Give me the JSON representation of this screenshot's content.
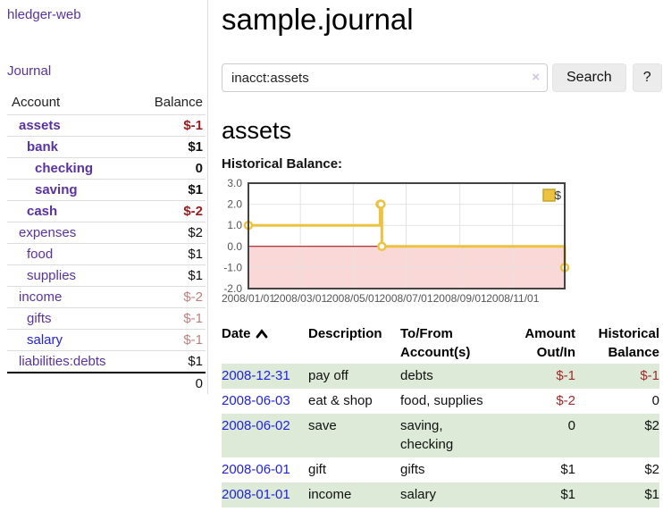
{
  "app": {
    "brand": "hledger-web",
    "nav_journal": "Journal"
  },
  "sidebar": {
    "header": {
      "account": "Account",
      "balance": "Balance"
    },
    "accounts": [
      {
        "name": "assets",
        "indent": 0,
        "balance": "$-1",
        "emphasized": true
      },
      {
        "name": "bank",
        "indent": 1,
        "balance": "$1",
        "emphasized": true
      },
      {
        "name": "checking",
        "indent": 2,
        "balance": "0",
        "emphasized": true
      },
      {
        "name": "saving",
        "indent": 2,
        "balance": "$1",
        "emphasized": true
      },
      {
        "name": "cash",
        "indent": 1,
        "balance": "$-2",
        "emphasized": true
      },
      {
        "name": "expenses",
        "indent": 0,
        "balance": "$2"
      },
      {
        "name": "food",
        "indent": 1,
        "balance": "$1"
      },
      {
        "name": "supplies",
        "indent": 1,
        "balance": "$1"
      },
      {
        "name": "income",
        "indent": 0,
        "balance": "$-2"
      },
      {
        "name": "gifts",
        "indent": 1,
        "balance": "$-1"
      },
      {
        "name": "salary",
        "indent": 1,
        "balance": "$-1",
        "unvisited": true
      },
      {
        "name": "liabilities:debts",
        "indent": 0,
        "balance": "$1"
      }
    ],
    "total": "0"
  },
  "header": {
    "title": "sample.journal"
  },
  "search": {
    "value": "inacct:assets",
    "clear_icon": "×",
    "button_label": "Search",
    "help_label": "?"
  },
  "account_page": {
    "heading": "assets",
    "chart_label": "Historical Balance:"
  },
  "chart_data": {
    "type": "line",
    "style": "steps-with-points",
    "title": "Historical Balance",
    "x_domain": [
      "2008-01-01",
      "2008-12-31"
    ],
    "ylim": [
      -2,
      3
    ],
    "y_ticks": [
      "3.0",
      "2.0",
      "1.0",
      "0.0",
      "-1.0",
      "-2.0"
    ],
    "x_ticks": [
      "2008/01/01",
      "2008/03/01",
      "2008/05/01",
      "2008/07/01",
      "2008/09/01",
      "2008/11/01"
    ],
    "series": [
      {
        "name": "$",
        "color": "#edc240",
        "points": [
          [
            "2008-01-01",
            1
          ],
          [
            "2008-06-01",
            2
          ],
          [
            "2008-06-02",
            2
          ],
          [
            "2008-06-03",
            0
          ],
          [
            "2008-12-31",
            -1
          ]
        ]
      }
    ],
    "legend": {
      "label": "$",
      "position": "top-right"
    },
    "grid": true,
    "negative_region_fill": "#fad8d8",
    "zero_line_color": "#990000"
  },
  "register": {
    "columns": [
      {
        "line1": "Date",
        "sort_icon": true,
        "align": "left"
      },
      {
        "line1": "Description",
        "align": "left"
      },
      {
        "line1": "To/From",
        "line2": "Account(s)",
        "align": "left"
      },
      {
        "line1": "Amount",
        "line2": "Out/In",
        "align": "right"
      },
      {
        "line1": "Historical",
        "line2": "Balance",
        "align": "right"
      }
    ],
    "rows": [
      {
        "date": "2008-12-31",
        "description": "pay off",
        "accounts": "debts",
        "amount": "$-1",
        "balance": "$-1"
      },
      {
        "date": "2008-06-03",
        "description": "eat & shop",
        "accounts": "food, supplies",
        "amount": "$-2",
        "balance": "0"
      },
      {
        "date": "2008-06-02",
        "description": "save",
        "accounts": "saving, checking",
        "amount": "0",
        "balance": "$2"
      },
      {
        "date": "2008-06-01",
        "description": "gift",
        "accounts": "gifts",
        "amount": "$1",
        "balance": "$2"
      },
      {
        "date": "2008-01-01",
        "description": "income",
        "accounts": "salary",
        "amount": "$1",
        "balance": "$1"
      }
    ]
  },
  "colors": {
    "accent_purple": "#5a32a0",
    "link_blue": "#2222dd",
    "negative_strong": "#9c1b1e",
    "negative_soft": "#c27d7d",
    "negative_table": "#a02b2b",
    "row_stripe_green": "#ddead8",
    "chart_line_gold": "#edc240"
  }
}
